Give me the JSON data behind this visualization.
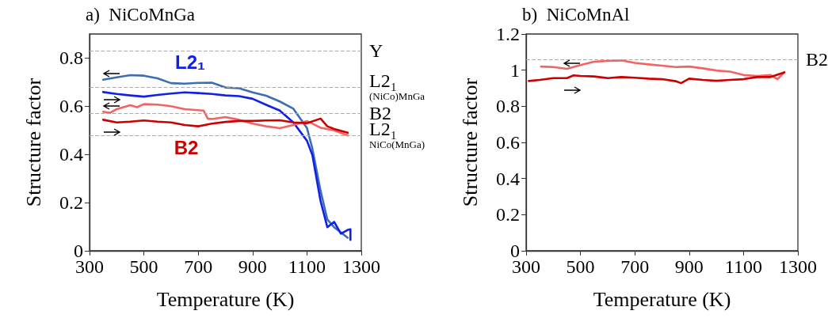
{
  "chart_data": [
    {
      "type": "line",
      "title": "a)  NiCoMnGa",
      "xlabel": "Temperature (K)",
      "ylabel": "Structure factor",
      "xlim": [
        300,
        1300
      ],
      "xticks": [
        300,
        500,
        700,
        900,
        1100,
        1300
      ],
      "ylim": [
        0,
        0.9
      ],
      "yticks": [
        0,
        0.2,
        0.4,
        0.6,
        0.8
      ],
      "grid": false,
      "line_style": "solid",
      "marker": "none",
      "series": [
        {
          "color": "#3d6fb0",
          "x": [
            350,
            400,
            450,
            500,
            550,
            600,
            650,
            700,
            750,
            800,
            850,
            900,
            950,
            1000,
            1050,
            1100,
            1120,
            1150,
            1175,
            1200,
            1250
          ],
          "values": [
            0.71,
            0.72,
            0.729,
            0.727,
            0.716,
            0.696,
            0.694,
            0.697,
            0.698,
            0.678,
            0.675,
            0.658,
            0.644,
            0.62,
            0.59,
            0.51,
            0.424,
            0.25,
            0.13,
            0.098,
            0.054
          ]
        },
        {
          "color": "#1020e8",
          "x": [
            350,
            400,
            450,
            500,
            550,
            600,
            650,
            700,
            750,
            800,
            850,
            900,
            950,
            1000,
            1050,
            1100,
            1120,
            1150,
            1175,
            1200,
            1225,
            1250,
            1260,
            1260
          ],
          "values": [
            0.659,
            0.651,
            0.645,
            0.64,
            0.647,
            0.653,
            0.658,
            0.655,
            0.651,
            0.645,
            0.642,
            0.631,
            0.606,
            0.582,
            0.533,
            0.457,
            0.397,
            0.207,
            0.098,
            0.12,
            0.071,
            0.087,
            0.089,
            0.045
          ]
        },
        {
          "color": "#f26464",
          "x": [
            350,
            375,
            400,
            450,
            475,
            500,
            550,
            600,
            650,
            700,
            720,
            735,
            750,
            800,
            850,
            900,
            950,
            1000,
            1050,
            1100,
            1150,
            1200,
            1250
          ],
          "values": [
            0.577,
            0.573,
            0.588,
            0.604,
            0.596,
            0.609,
            0.607,
            0.6,
            0.588,
            0.584,
            0.582,
            0.549,
            0.547,
            0.555,
            0.544,
            0.528,
            0.517,
            0.509,
            0.522,
            0.539,
            0.511,
            0.5,
            0.479
          ]
        },
        {
          "color": "#cc0000",
          "x": [
            350,
            400,
            450,
            500,
            550,
            600,
            650,
            700,
            750,
            800,
            850,
            900,
            950,
            1000,
            1050,
            1100,
            1150,
            1175,
            1200,
            1250
          ],
          "values": [
            0.544,
            0.533,
            0.536,
            0.541,
            0.536,
            0.533,
            0.522,
            0.517,
            0.528,
            0.535,
            0.539,
            0.539,
            0.541,
            0.542,
            0.533,
            0.53,
            0.549,
            0.517,
            0.506,
            0.49
          ]
        }
      ],
      "ref_lines": [
        {
          "axis": "y",
          "value": 0.83,
          "label": "Y",
          "color": "#aaaaaa",
          "line_style": "dashed"
        },
        {
          "axis": "y",
          "value": 0.677,
          "label": "L2₁ (NiCo)MnGa",
          "color": "#aaaaaa",
          "line_style": "dashed"
        },
        {
          "axis": "y",
          "value": 0.566,
          "label": "B2",
          "color": "#aaaaaa",
          "line_style": "dashed"
        },
        {
          "axis": "y",
          "value": 0.479,
          "label": "L2₁ NiCo(MnGa)",
          "color": "#aaaaaa",
          "line_style": "dashed"
        }
      ],
      "annotations": [
        "L2₁",
        "B2"
      ]
    },
    {
      "type": "line",
      "title": "b)  NiCoMnAl",
      "xlabel": "Temperature (K)",
      "ylabel": "Structure factor",
      "xlim": [
        300,
        1300
      ],
      "xticks": [
        300,
        500,
        700,
        900,
        1100,
        1300
      ],
      "ylim": [
        0,
        1.2
      ],
      "yticks": [
        0,
        0.2,
        0.4,
        0.6,
        0.8,
        1,
        1.2
      ],
      "grid": false,
      "line_style": "solid",
      "marker": "none",
      "series": [
        {
          "color": "#f26464",
          "x": [
            355,
            400,
            450,
            500,
            550,
            600,
            650,
            700,
            750,
            800,
            850,
            900,
            950,
            1000,
            1050,
            1100,
            1150,
            1200,
            1225,
            1250
          ],
          "values": [
            1.02,
            1.017,
            1.007,
            1.028,
            1.047,
            1.051,
            1.054,
            1.04,
            1.032,
            1.025,
            1.017,
            1.02,
            1.01,
            0.998,
            0.992,
            0.973,
            0.968,
            0.973,
            0.95,
            0.988
          ]
        },
        {
          "color": "#cc0000",
          "x": [
            310,
            350,
            400,
            450,
            475,
            500,
            550,
            600,
            650,
            700,
            750,
            800,
            850,
            870,
            900,
            950,
            1000,
            1050,
            1100,
            1150,
            1200,
            1250
          ],
          "values": [
            0.94,
            0.946,
            0.956,
            0.956,
            0.971,
            0.968,
            0.965,
            0.956,
            0.962,
            0.958,
            0.953,
            0.95,
            0.939,
            0.928,
            0.953,
            0.946,
            0.941,
            0.946,
            0.95,
            0.962,
            0.962,
            0.988
          ]
        }
      ],
      "ref_lines": [
        {
          "axis": "y",
          "value": 1.057,
          "label": "B2",
          "color": "#aaaaaa",
          "line_style": "dashed"
        }
      ]
    }
  ]
}
